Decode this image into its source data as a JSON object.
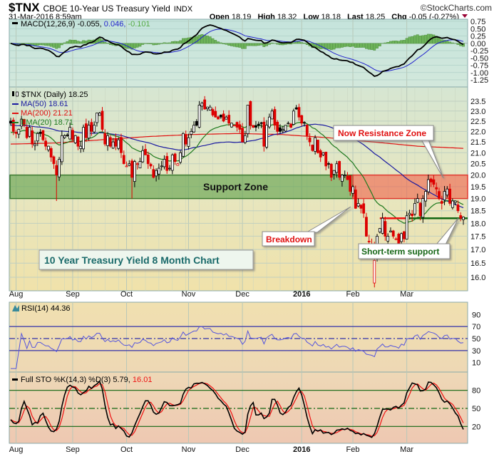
{
  "header": {
    "symbol": "$TNX",
    "name": "CBOE 10-Year US Treasury Yield",
    "exchange": "INDX",
    "datetime": "31-Mar-2016 8:59am",
    "watermark": "©StockCharts.com",
    "open_label": "Open",
    "open": "18.19",
    "high_label": "High",
    "high": "18.32",
    "low_label": "Low",
    "low": "18.18",
    "last_label": "Last",
    "last": "18.25",
    "chg_label": "Chg",
    "chg": "-0.05 (-0.27%)",
    "chg_icon": "down-triangle-icon"
  },
  "colors": {
    "up": "#000000",
    "down": "#dd0000",
    "ma50": "#1a1aa0",
    "ma200": "#e01010",
    "ema20": "#1f7a1f",
    "macd_hist": "#6db359",
    "rsi": "#5555dd",
    "sto_k": "#000000",
    "sto_d": "#ee1111"
  },
  "chart_data": {
    "type": "candlestick",
    "title": "10 Year Treasury Yield 8 Month Chart",
    "x_ticks": [
      {
        "label": "Aug",
        "bar": 2
      },
      {
        "label": "Sep",
        "bar": 23
      },
      {
        "label": "Oct",
        "bar": 43
      },
      {
        "label": "Nov",
        "bar": 66
      },
      {
        "label": "Dec",
        "bar": 86
      },
      {
        "label": "2016",
        "bar": 108,
        "bold": true
      },
      {
        "label": "Feb",
        "bar": 127
      },
      {
        "label": "Mar",
        "bar": 147
      }
    ],
    "price": {
      "legend": "$TNX (Daily) 18.25",
      "scale": "log",
      "ylim": [
        15.6,
        23.9
      ],
      "y_ticks": [
        "16.0",
        "16.5",
        "17.0",
        "17.5",
        "18.0",
        "18.5",
        "19.0",
        "19.5",
        "20.0",
        "20.5",
        "21.0",
        "21.5",
        "22.0",
        "22.5",
        "23.0",
        "23.5"
      ],
      "closes": [
        22.4,
        22.0,
        21.9,
        22.1,
        22.6,
        22.3,
        21.7,
        22.2,
        21.4,
        21.4,
        21.9,
        21.9,
        21.6,
        21.3,
        21.3,
        20.8,
        20.5,
        20.0,
        20.7,
        21.8,
        21.8,
        21.8,
        22.2,
        21.6,
        21.8,
        21.3,
        21.3,
        22.2,
        21.7,
        22.3,
        22.0,
        22.3,
        22.9,
        22.9,
        22.1,
        21.4,
        21.8,
        21.3,
        21.5,
        21.3,
        21.6,
        21.0,
        20.5,
        20.4,
        20.5,
        19.9,
        20.6,
        20.5,
        20.6,
        21.1,
        20.9,
        20.5,
        20.4,
        19.9,
        20.2,
        20.3,
        20.4,
        20.7,
        20.2,
        20.3,
        20.9,
        20.6,
        20.5,
        21.0,
        21.9,
        21.4,
        21.7,
        22.0,
        22.3,
        22.3,
        23.3,
        23.4,
        23.1,
        23.2,
        23.2,
        22.8,
        22.7,
        22.6,
        22.7,
        22.5,
        22.7,
        22.4,
        22.4,
        22.3,
        22.2,
        22.1,
        21.5,
        21.8,
        23.3,
        22.3,
        22.2,
        22.2,
        22.3,
        22.4,
        21.3,
        22.3,
        22.7,
        23.0,
        22.3,
        22.0,
        22.0,
        22.1,
        22.3,
        22.4,
        22.2,
        23.0,
        23.1,
        22.7,
        22.4,
        22.4,
        21.8,
        21.5,
        21.1,
        21.7,
        21.0,
        20.8,
        21.0,
        20.4,
        20.5,
        19.9,
        20.2,
        20.5,
        19.9,
        20.0,
        20.0,
        19.8,
        19.3,
        19.5,
        18.6,
        18.8,
        18.6,
        18.4,
        17.5,
        17.3,
        17.1,
        16.6,
        17.5,
        17.8,
        18.2,
        17.5,
        17.5,
        17.7,
        17.5,
        17.4,
        17.1,
        17.6,
        17.4,
        18.3,
        18.4,
        18.3,
        18.8,
        19.0,
        18.3,
        19.0,
        19.3,
        19.8,
        19.7,
        19.6,
        19.4,
        19.0,
        18.8,
        19.3,
        19.4,
        18.8,
        18.9,
        18.9,
        18.5,
        18.2,
        18.25
      ],
      "low_overrides": [
        {
          "bar": 17,
          "low": 18.9
        },
        {
          "bar": 45,
          "low": 19.0
        },
        {
          "bar": 135,
          "low": 15.65,
          "open": 15.8
        }
      ],
      "ma200": [
        21.4,
        21.45,
        21.6,
        21.75,
        21.85,
        21.9,
        21.85,
        21.7,
        21.5,
        21.3,
        21.2
      ],
      "legend_ma50": "MA(50) 18.61",
      "legend_ma200": "MA(200) 21.21",
      "legend_ema20": "EMA(20) 18.71",
      "support_zone": {
        "label": "Support Zone",
        "low": 19.0,
        "high": 20.0,
        "from_bar": 0,
        "to_bar": 127
      },
      "resistance_zone": {
        "label": "Now Resistance Zone",
        "low": 19.0,
        "high": 20.0,
        "from_bar": 127
      },
      "breakdown_label": "Breakdown",
      "short_term_support": {
        "label": "Short-term support",
        "level": 18.2
      },
      "prior_support_level": 18.2
    },
    "macd": {
      "legend_name": "MACD(12,26,9)",
      "legend_macd": "-0.055,",
      "legend_signal": "0.046,",
      "legend_hist": "-0.101",
      "ylim": [
        -1.3,
        0.8
      ],
      "y_ticks": [
        "0.75",
        "0.50",
        "0.25",
        "0.00",
        "-0.25",
        "-0.50",
        "-0.75",
        "-1.00",
        "-1.25"
      ]
    },
    "rsi": {
      "legend": "RSI(14) 44.36",
      "ylim": [
        0,
        100
      ],
      "levels": [
        30,
        50,
        70
      ],
      "y_ticks": [
        "90",
        "70",
        "50",
        "30",
        "10"
      ]
    },
    "sto": {
      "legend_name": "Full STO %K(14,3) %D(3) 5.79,",
      "legend_d": "16.01",
      "ylim": [
        0,
        100
      ],
      "levels": [
        20,
        50,
        80
      ],
      "y_ticks": [
        "80",
        "50",
        "20"
      ]
    }
  }
}
